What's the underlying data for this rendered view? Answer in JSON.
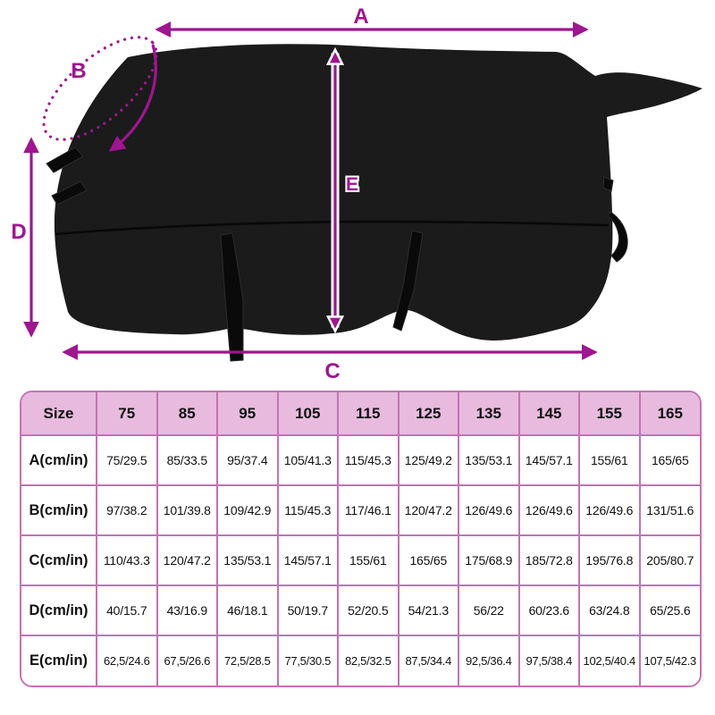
{
  "diagram": {
    "labels": {
      "a": "A",
      "b": "B",
      "c": "C",
      "d": "D",
      "e": "E"
    },
    "arrow_color": "#9e1690",
    "blanket_color": "#1b1b1b"
  },
  "table": {
    "border_color": "#c472b4",
    "header_bg": "#e7bade",
    "header": [
      "Size",
      "75",
      "85",
      "95",
      "105",
      "115",
      "125",
      "135",
      "145",
      "155",
      "165"
    ],
    "rows": [
      {
        "label": "A(cm/in)",
        "values": [
          "75/29.5",
          "85/33.5",
          "95/37.4",
          "105/41.3",
          "115/45.3",
          "125/49.2",
          "135/53.1",
          "145/57.1",
          "155/61",
          "165/65"
        ]
      },
      {
        "label": "B(cm/in)",
        "values": [
          "97/38.2",
          "101/39.8",
          "109/42.9",
          "115/45.3",
          "117/46.1",
          "120/47.2",
          "126/49.6",
          "126/49.6",
          "126/49.6",
          "131/51.6"
        ]
      },
      {
        "label": "C(cm/in)",
        "values": [
          "110/43.3",
          "120/47.2",
          "135/53.1",
          "145/57.1",
          "155/61",
          "165/65",
          "175/68.9",
          "185/72.8",
          "195/76.8",
          "205/80.7"
        ]
      },
      {
        "label": "D(cm/in)",
        "values": [
          "40/15.7",
          "43/16.9",
          "46/18.1",
          "50/19.7",
          "52/20.5",
          "54/21.3",
          "56/22",
          "60/23.6",
          "63/24.8",
          "65/25.6"
        ]
      },
      {
        "label": "E(cm/in)",
        "values": [
          "62,5/24.6",
          "67,5/26.6",
          "72,5/28.5",
          "77,5/30.5",
          "82,5/32.5",
          "87,5/34.4",
          "92,5/36.4",
          "97,5/38.4",
          "102,5/40.4",
          "107,5/42.3"
        ]
      }
    ]
  }
}
